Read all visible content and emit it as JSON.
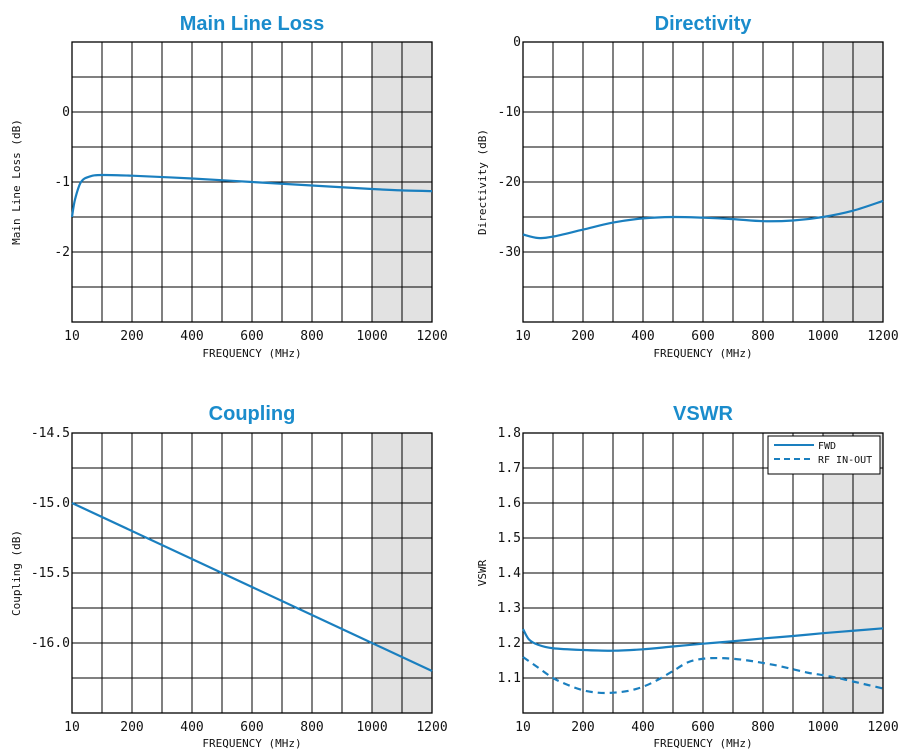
{
  "chart_data": [
    {
      "id": "main-line-loss",
      "type": "line",
      "title": "Main Line Loss",
      "xlabel": "FREQUENCY (MHz)",
      "ylabel": "Main Line Loss (dB)",
      "xlim": [
        0,
        1200
      ],
      "ylim": [
        -3,
        1
      ],
      "x_ticks": [
        {
          "v": 0,
          "label": "10"
        },
        {
          "v": 200,
          "label": "200"
        },
        {
          "v": 400,
          "label": "400"
        },
        {
          "v": 600,
          "label": "600"
        },
        {
          "v": 800,
          "label": "800"
        },
        {
          "v": 1000,
          "label": "1000"
        },
        {
          "v": 1200,
          "label": "1200"
        }
      ],
      "y_ticks": [
        {
          "v": 0,
          "label": "0"
        },
        {
          "v": -1,
          "label": "-1"
        },
        {
          "v": -2,
          "label": "-2"
        }
      ],
      "grid": true,
      "grid_x_step": 100,
      "grid_y_step": 0.5,
      "shaded_range": [
        1000,
        1200
      ],
      "series": [
        {
          "style": "solid",
          "color": "#1a7fbf",
          "x": [
            0,
            10,
            30,
            60,
            100,
            200,
            400,
            600,
            800,
            1000,
            1100,
            1200
          ],
          "y": [
            -1.5,
            -1.25,
            -1.0,
            -0.92,
            -0.9,
            -0.91,
            -0.95,
            -1.0,
            -1.05,
            -1.1,
            -1.12,
            -1.13
          ]
        }
      ]
    },
    {
      "id": "directivity",
      "type": "line",
      "title": "Directivity",
      "xlabel": "FREQUENCY (MHz)",
      "ylabel": "Directivity (dB)",
      "xlim": [
        0,
        1200
      ],
      "ylim": [
        -40,
        0
      ],
      "x_ticks": [
        {
          "v": 0,
          "label": "10"
        },
        {
          "v": 200,
          "label": "200"
        },
        {
          "v": 400,
          "label": "400"
        },
        {
          "v": 600,
          "label": "600"
        },
        {
          "v": 800,
          "label": "800"
        },
        {
          "v": 1000,
          "label": "1000"
        },
        {
          "v": 1200,
          "label": "1200"
        }
      ],
      "y_ticks": [
        {
          "v": 0,
          "label": "0"
        },
        {
          "v": -10,
          "label": "-10"
        },
        {
          "v": -20,
          "label": "-20"
        },
        {
          "v": -30,
          "label": "-30"
        }
      ],
      "grid": true,
      "grid_x_step": 100,
      "grid_y_step": 5,
      "shaded_range": [
        1000,
        1200
      ],
      "series": [
        {
          "style": "solid",
          "color": "#1a7fbf",
          "x": [
            0,
            50,
            100,
            200,
            300,
            400,
            500,
            600,
            700,
            800,
            900,
            1000,
            1100,
            1200
          ],
          "y": [
            -27.5,
            -28.0,
            -27.8,
            -26.8,
            -25.8,
            -25.2,
            -25.0,
            -25.1,
            -25.3,
            -25.6,
            -25.5,
            -25.0,
            -24.1,
            -22.7
          ]
        }
      ]
    },
    {
      "id": "coupling",
      "type": "line",
      "title": "Coupling",
      "xlabel": "FREQUENCY (MHz)",
      "ylabel": "Coupling (dB)",
      "xlim": [
        0,
        1200
      ],
      "ylim": [
        -16.5,
        -14.5
      ],
      "x_ticks": [
        {
          "v": 0,
          "label": "10"
        },
        {
          "v": 200,
          "label": "200"
        },
        {
          "v": 400,
          "label": "400"
        },
        {
          "v": 600,
          "label": "600"
        },
        {
          "v": 800,
          "label": "800"
        },
        {
          "v": 1000,
          "label": "1000"
        },
        {
          "v": 1200,
          "label": "1200"
        }
      ],
      "y_ticks": [
        {
          "v": -14.5,
          "label": "-14.5"
        },
        {
          "v": -15.0,
          "label": "-15.0"
        },
        {
          "v": -15.5,
          "label": "-15.5"
        },
        {
          "v": -16.0,
          "label": "-16.0"
        }
      ],
      "grid": true,
      "grid_x_step": 100,
      "grid_y_step": 0.25,
      "shaded_range": [
        1000,
        1200
      ],
      "series": [
        {
          "style": "solid",
          "color": "#1a7fbf",
          "x": [
            0,
            1200
          ],
          "y": [
            -15.0,
            -16.2
          ]
        }
      ]
    },
    {
      "id": "vswr",
      "type": "line",
      "title": "VSWR",
      "xlabel": "FREQUENCY (MHz)",
      "ylabel": "VSWR",
      "xlim": [
        0,
        1200
      ],
      "ylim": [
        1.0,
        1.8
      ],
      "x_ticks": [
        {
          "v": 0,
          "label": "10"
        },
        {
          "v": 200,
          "label": "200"
        },
        {
          "v": 400,
          "label": "400"
        },
        {
          "v": 600,
          "label": "600"
        },
        {
          "v": 800,
          "label": "800"
        },
        {
          "v": 1000,
          "label": "1000"
        },
        {
          "v": 1200,
          "label": "1200"
        }
      ],
      "y_ticks": [
        {
          "v": 1.8,
          "label": "1.8"
        },
        {
          "v": 1.7,
          "label": "1.7"
        },
        {
          "v": 1.6,
          "label": "1.6"
        },
        {
          "v": 1.5,
          "label": "1.5"
        },
        {
          "v": 1.4,
          "label": "1.4"
        },
        {
          "v": 1.3,
          "label": "1.3"
        },
        {
          "v": 1.2,
          "label": "1.2"
        },
        {
          "v": 1.1,
          "label": "1.1"
        }
      ],
      "grid": true,
      "grid_x_step": 100,
      "grid_y_step": 0.1,
      "shaded_range": [
        1000,
        1200
      ],
      "legend_position": "top-right",
      "series": [
        {
          "name": "FWD",
          "style": "solid",
          "color": "#1a7fbf",
          "x": [
            0,
            20,
            50,
            100,
            200,
            300,
            400,
            500,
            600,
            700,
            800,
            900,
            1000,
            1100,
            1200
          ],
          "y": [
            1.24,
            1.21,
            1.195,
            1.185,
            1.18,
            1.178,
            1.182,
            1.19,
            1.198,
            1.205,
            1.213,
            1.22,
            1.228,
            1.235,
            1.242
          ]
        },
        {
          "name": "RF IN-OUT",
          "style": "dashed",
          "color": "#1a7fbf",
          "x": [
            0,
            50,
            100,
            150,
            200,
            250,
            300,
            350,
            400,
            450,
            500,
            550,
            600,
            650,
            700,
            750,
            800,
            850,
            900,
            950,
            1000,
            1050,
            1100,
            1150,
            1200
          ],
          "y": [
            1.16,
            1.13,
            1.1,
            1.08,
            1.065,
            1.058,
            1.058,
            1.063,
            1.075,
            1.095,
            1.12,
            1.145,
            1.155,
            1.157,
            1.155,
            1.15,
            1.143,
            1.135,
            1.125,
            1.115,
            1.108,
            1.1,
            1.09,
            1.08,
            1.07
          ]
        }
      ]
    }
  ]
}
